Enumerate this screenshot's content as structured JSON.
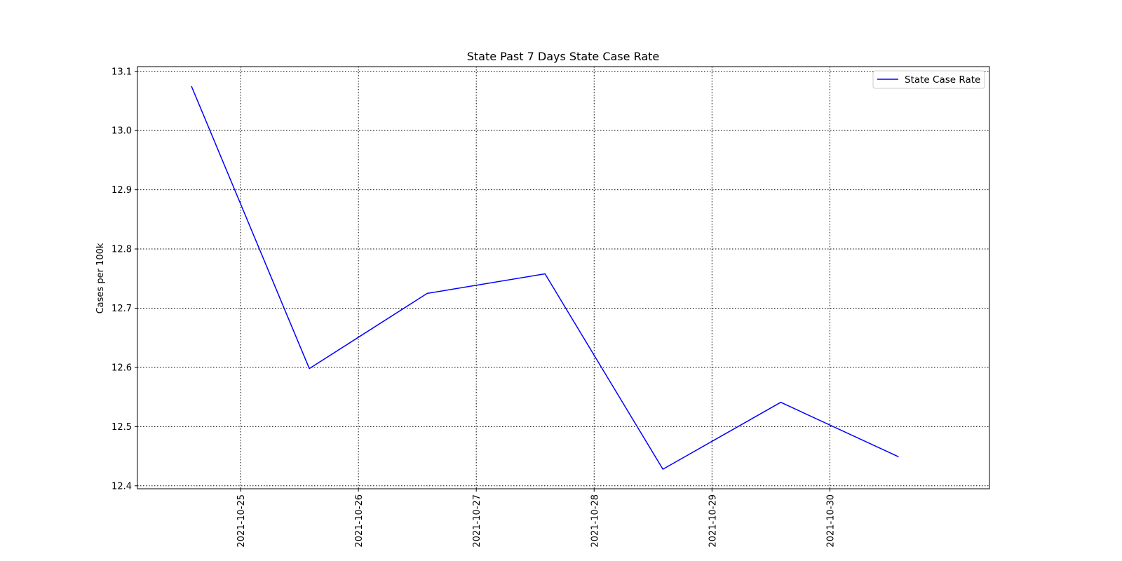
{
  "chart_data": {
    "type": "line",
    "title": "State Past 7 Days State Case Rate",
    "xlabel": "",
    "ylabel": "Cases per 100k",
    "x": [
      "2021-10-24 14:00",
      "2021-10-25 14:00",
      "2021-10-26 14:00",
      "2021-10-27 14:00",
      "2021-10-28 14:00",
      "2021-10-29 14:00",
      "2021-10-30 14:00"
    ],
    "series": [
      {
        "name": "State Case Rate",
        "color": "#0000ff",
        "values": [
          13.075,
          12.598,
          12.725,
          12.758,
          12.428,
          12.541,
          12.449
        ]
      }
    ],
    "xticks": [
      "2021-10-25",
      "2021-10-26",
      "2021-10-27",
      "2021-10-28",
      "2021-10-29",
      "2021-10-30"
    ],
    "yticks": [
      "12.4",
      "12.5",
      "12.6",
      "12.7",
      "12.8",
      "12.9",
      "13.0",
      "13.1"
    ],
    "xlim": [
      "2021-10-24 03:00",
      "2021-10-31 08:30"
    ],
    "ylim": [
      12.395,
      13.108
    ],
    "grid": true,
    "legend_position": "top-right"
  }
}
